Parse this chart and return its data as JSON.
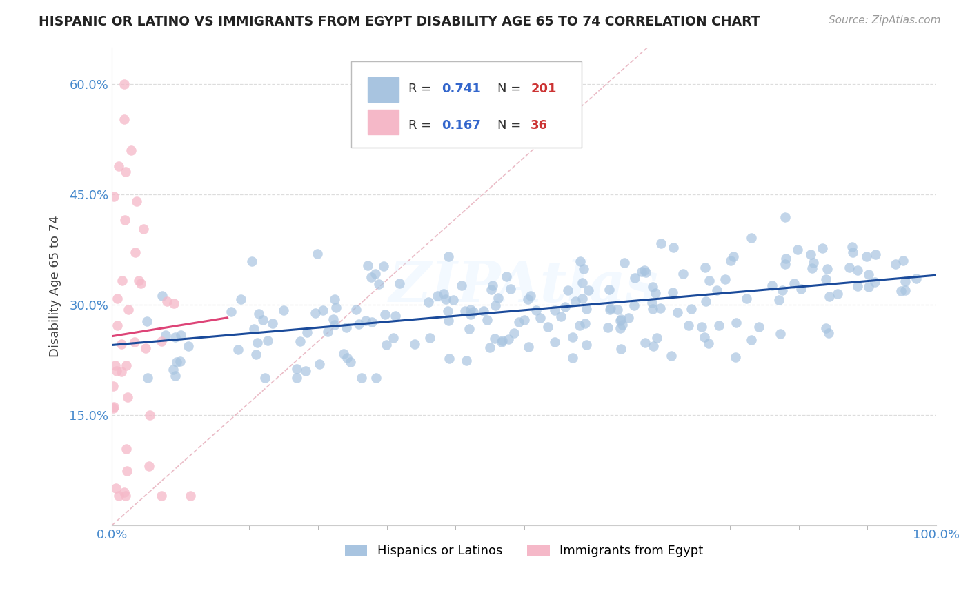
{
  "title": "HISPANIC OR LATINO VS IMMIGRANTS FROM EGYPT DISABILITY AGE 65 TO 74 CORRELATION CHART",
  "source": "Source: ZipAtlas.com",
  "ylabel": "Disability Age 65 to 74",
  "xlim": [
    0,
    1.0
  ],
  "ylim": [
    0.0,
    0.65
  ],
  "yticks": [
    0.15,
    0.3,
    0.45,
    0.6
  ],
  "ytick_labels": [
    "15.0%",
    "30.0%",
    "45.0%",
    "60.0%"
  ],
  "xtick_labels": [
    "0.0%",
    "100.0%"
  ],
  "blue_R": 0.741,
  "blue_N": 201,
  "pink_R": 0.167,
  "pink_N": 36,
  "blue_color": "#a8c4e0",
  "pink_color": "#f5b8c8",
  "blue_line_color": "#1a4a9a",
  "pink_line_color": "#dd4477",
  "diag_line_color": "#e8b4c0",
  "blue_label": "Hispanics or Latinos",
  "pink_label": "Immigrants from Egypt",
  "watermark": "ZIPAtlas",
  "grid_color": "#dddddd",
  "title_color": "#222222",
  "axis_color": "#4488cc",
  "legend_R_color": "#3366cc",
  "legend_N_color": "#cc3333",
  "random_seed_blue": 42,
  "random_seed_pink": 7,
  "blue_intercept": 0.245,
  "blue_slope": 0.095,
  "pink_intercept": 0.257,
  "pink_slope": 0.18
}
